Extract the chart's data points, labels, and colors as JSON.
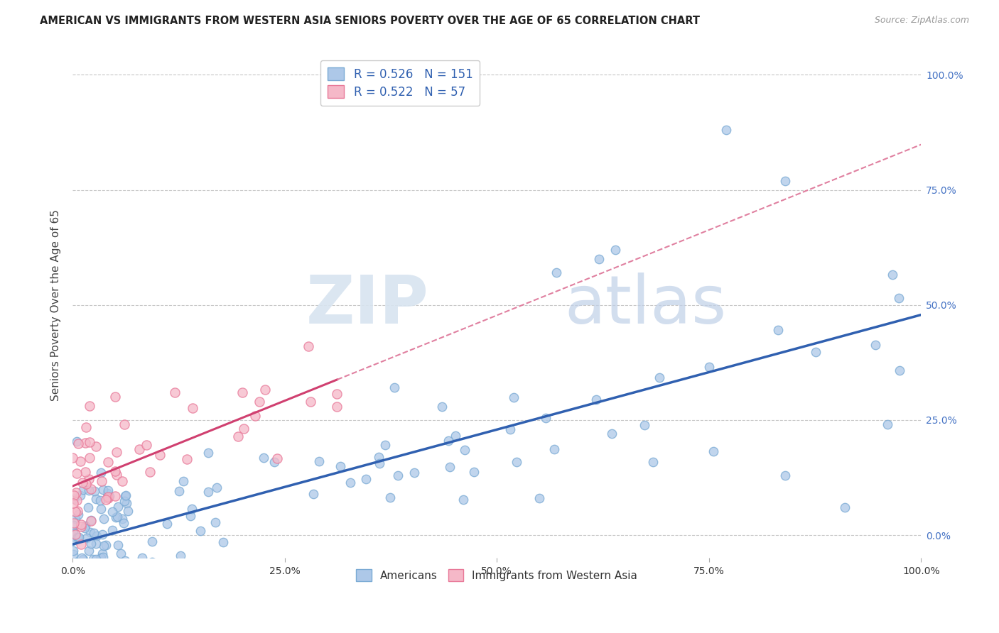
{
  "title": "AMERICAN VS IMMIGRANTS FROM WESTERN ASIA SENIORS POVERTY OVER THE AGE OF 65 CORRELATION CHART",
  "source": "Source: ZipAtlas.com",
  "ylabel": "Seniors Poverty Over the Age of 65",
  "r_american": 0.526,
  "n_american": 151,
  "r_immigrant": 0.522,
  "n_immigrant": 57,
  "american_color_fill": "#adc8e8",
  "american_color_edge": "#7aaad4",
  "immigrant_color_fill": "#f5b8c8",
  "immigrant_color_edge": "#e87898",
  "trend_american_color": "#3060b0",
  "trend_immigrant_solid": "#d04070",
  "trend_immigrant_dashed": "#e080a0",
  "legend_label_american": "Americans",
  "legend_label_immigrant": "Immigrants from Western Asia",
  "watermark_zip": "ZIP",
  "watermark_atlas": "atlas",
  "background_color": "#ffffff",
  "grid_color": "#c8c8c8",
  "xlim": [
    0.0,
    1.0
  ],
  "ylim": [
    -0.05,
    1.05
  ],
  "x_ticks": [
    0.0,
    0.25,
    0.5,
    0.75,
    1.0
  ],
  "y_ticks": [
    0.0,
    0.25,
    0.5,
    0.75,
    1.0
  ],
  "right_tick_color": "#4472c4",
  "title_fontsize": 10.5,
  "source_fontsize": 9
}
